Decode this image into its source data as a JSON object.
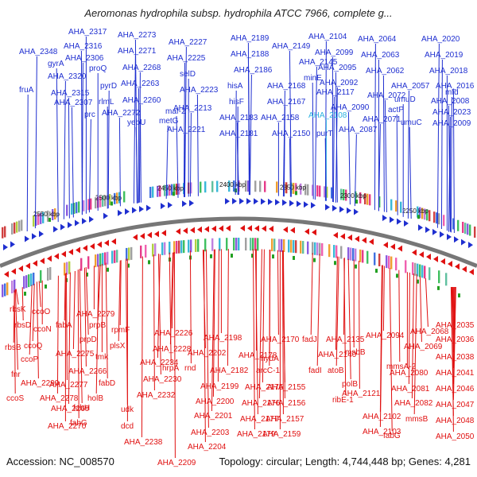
{
  "title": "Aeromonas hydrophila subsp. hydrophila ATCC 7966, complete g...",
  "footer": {
    "accession": "Accession: NC_008570",
    "summary": "Topology: circular; Length: 4,744,448 bp; Genes: 4,281"
  },
  "colors": {
    "top_strand": "#1f2fd0",
    "bottom_strand": "#e01010",
    "highlight": "#2ab0e0",
    "backbone": "#777777",
    "kbp_tick": "#22a022"
  },
  "kbp_ticks": [
    "2550 kbp",
    "2500 kbp",
    "2450 kbp",
    "2400 kbp",
    "2350 kbp",
    "2300 kbp",
    "2250 kbp"
  ],
  "top_labels": [
    "AHA_2348",
    "fruA",
    "AHA_2317",
    "AHA_2316",
    "gyrA",
    "AHA_2320",
    "AHA_2306",
    "proQ",
    "AHA_2315",
    "AHA_2307",
    "prc",
    "pyrD",
    "rlmL",
    "AHA_2272",
    "AHA_2273",
    "AHA_2271",
    "AHA_2268",
    "AHA_2263",
    "AHA_2260",
    "yebU",
    "AHA_2227",
    "AHA_2225",
    "selD",
    "AHA_2223",
    "maf-2",
    "metG",
    "AHA_2213",
    "AHA_2221",
    "AHA_2189",
    "AHA_2188",
    "AHA_2186",
    "hisA",
    "hisF",
    "AHA_2183",
    "AHA_2181",
    "AHA_2168",
    "AHA_2167",
    "AHA_2158",
    "AHA_2150",
    "AHA_2149",
    "AHA_2145",
    "AHA_2104",
    "AHA_2099",
    "minE",
    "AHA_2095",
    "AHA_2092",
    "AHA_2117",
    "AHA_2108",
    "purT",
    "AHA_2090",
    "AHA_2087",
    "AHA_2064",
    "AHA_2063",
    "AHA_2062",
    "AHA_2072",
    "AHA_2071",
    "AHA_2057",
    "umuD",
    "actP",
    "umuC",
    "AHA_2020",
    "AHA_2019",
    "AHA_2018",
    "AHA_2016",
    "AHA_2008",
    "AHA_2023",
    "mfd",
    "AHA_2009"
  ],
  "bottom_labels": [
    "rbsK",
    "ccoO",
    "rbsD",
    "ccoN",
    "rbsB",
    "ccoQ",
    "ccoP",
    "fnr",
    "AHA_2299",
    "ccoS",
    "AHA_2279",
    "fabA",
    "AHA_2275",
    "prpB",
    "prpD",
    "AHA_2266",
    "AHA_2277",
    "tmk",
    "AHA_2278",
    "AHA_2269",
    "holB",
    "fabH",
    "fabD",
    "fabG",
    "AHA_2270",
    "rpmF",
    "plsX",
    "AHA_2234",
    "AHA_2230",
    "udk",
    "AHA_2232",
    "dcd",
    "AHA_2238",
    "AHA_2226",
    "AHA_2228",
    "AHA_2202",
    "hrpA",
    "rnd",
    "AHA_2198",
    "AHA_2199",
    "AHA_2200",
    "AHA_2201",
    "AHA_2203",
    "AHA_2204",
    "AHA_2209",
    "AHA_2178",
    "AHA_2182",
    "AHA_2175",
    "AHA_2176",
    "AHA_2177",
    "AHA_2179",
    "AHA_2170",
    "hydA",
    "arcC-1",
    "fadJ",
    "fadI",
    "AHA_2155",
    "AHA_2156",
    "AHA_2157",
    "AHA_2159",
    "AHA_2135",
    "AHA_2140",
    "atoB",
    "polB",
    "ribE-1",
    "AHA_2121",
    "msbB",
    "AHA_2094",
    "AHA_2102",
    "AHA_2103",
    "AHA_2068",
    "AHA_2069",
    "mmsA-2",
    "AHA_2080",
    "AHA_2081",
    "AHA_2082",
    "mmsB",
    "fabG",
    "AHA_2035",
    "AHA_2036",
    "AHA_2038",
    "AHA_2041",
    "AHA_2046",
    "AHA_2047",
    "AHA_2048",
    "AHA_2050"
  ]
}
